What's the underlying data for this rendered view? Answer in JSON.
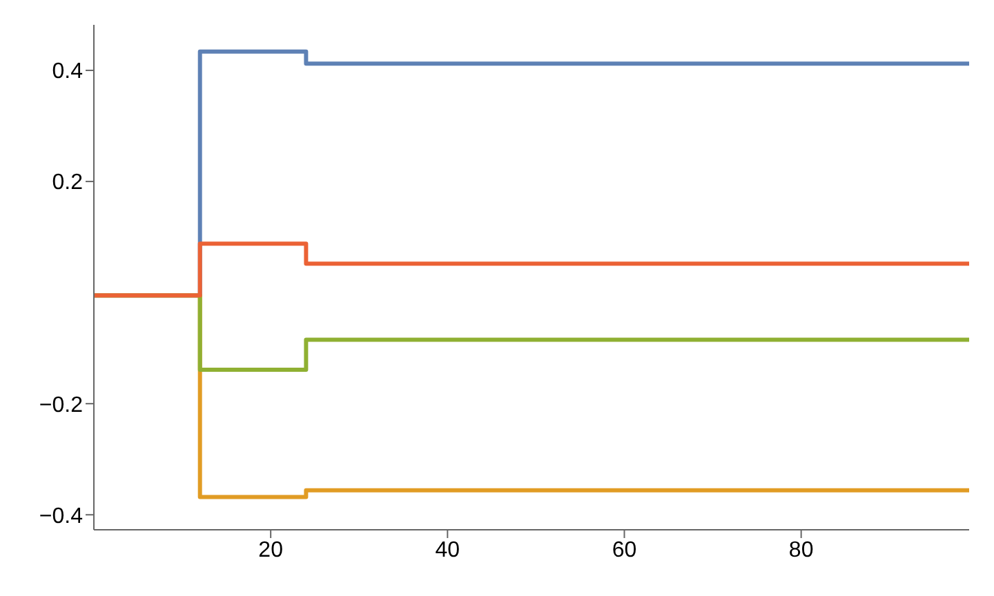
{
  "chart_data": {
    "type": "step",
    "xlim": [
      0,
      99
    ],
    "ylim": [
      -0.427,
      0.482
    ],
    "xticks": [
      20,
      40,
      60,
      80
    ],
    "yticks": [
      -0.4,
      -0.2,
      0.2,
      0.4
    ],
    "grid": false,
    "marker": "none",
    "line_style": "solid",
    "series": [
      {
        "color": "#5e81b5",
        "x": [
          0,
          12,
          24,
          36,
          99
        ],
        "values": [
          -0.005,
          0.434,
          0.412,
          0.412,
          0.412
        ]
      },
      {
        "color": "#e19c24",
        "x": [
          0,
          12,
          24,
          36,
          99
        ],
        "values": [
          -0.005,
          -0.368,
          -0.356,
          -0.356,
          -0.356
        ]
      },
      {
        "color": "#8fb032",
        "x": [
          0,
          12,
          24,
          36,
          99
        ],
        "values": [
          -0.005,
          -0.139,
          -0.085,
          -0.085,
          -0.085
        ]
      },
      {
        "color": "#eb6235",
        "x": [
          0,
          12,
          24,
          36,
          99
        ],
        "values": [
          -0.005,
          0.088,
          0.052,
          0.052,
          0.052
        ]
      }
    ]
  }
}
